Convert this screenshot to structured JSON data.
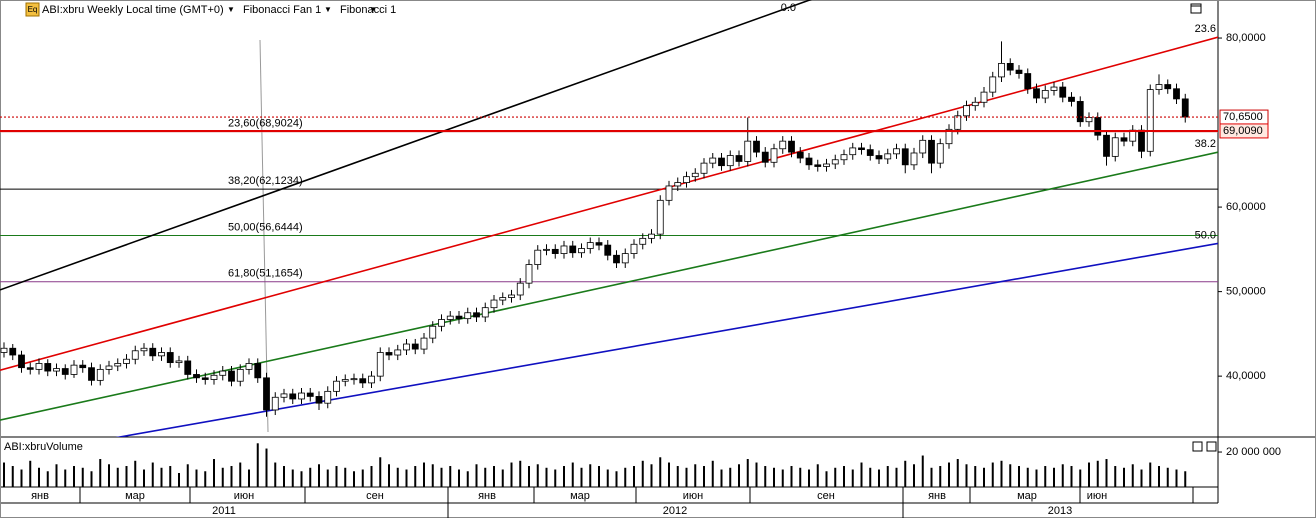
{
  "chart_data": {
    "type": "candlestick",
    "icon": "Eq",
    "title": "ABI:xbru Weekly Local time (GMT+0)",
    "menus": [
      "Fibonacci Fan 1",
      "Fibonacci 1"
    ],
    "ylim": [
      32.8,
      84.5
    ],
    "yticks": [
      {
        "value": 80,
        "label": "80,0000"
      },
      {
        "value": 60,
        "label": "60,0000"
      },
      {
        "value": 50,
        "label": "50,0000"
      },
      {
        "value": 40,
        "label": "40,0000"
      }
    ],
    "up_color": "#ffffff",
    "down_color": "#000000",
    "months": [
      "янв",
      "мар",
      "июн",
      "сен",
      "янв",
      "мар",
      "июн",
      "сен",
      "янв",
      "мар",
      "июн"
    ],
    "years": [
      "2011",
      "2012",
      "2013"
    ],
    "open": [
      42.8,
      43.3,
      42.5,
      41.0,
      40.8,
      41.5,
      40.6,
      40.9,
      40.2,
      41.3,
      41.0,
      39.5,
      40.8,
      41.2,
      41.5,
      42.0,
      43.0,
      43.3,
      42.4,
      42.8,
      41.6,
      41.8,
      40.2,
      39.8,
      39.6,
      40.1,
      40.6,
      39.4,
      40.8,
      41.5,
      39.8,
      36.0,
      37.5,
      37.9,
      37.3,
      38.0,
      37.6,
      36.8,
      38.2,
      39.4,
      39.6,
      39.7,
      39.2,
      40.0,
      42.8,
      42.5,
      43.1,
      43.8,
      43.2,
      44.5,
      45.9,
      46.7,
      47.1,
      46.8,
      47.5,
      47.0,
      48.1,
      49.0,
      49.3,
      49.6,
      51.0,
      53.2,
      54.9,
      55.0,
      54.5,
      55.4,
      54.6,
      55.1,
      55.8,
      55.5,
      54.3,
      53.4,
      54.5,
      55.6,
      56.3,
      56.8,
      60.8,
      62.5,
      62.9,
      63.6,
      64.0,
      65.2,
      65.8,
      64.9,
      66.1,
      65.4,
      67.8,
      66.5,
      65.3,
      66.9,
      67.8,
      66.5,
      65.8,
      65.0,
      64.8,
      65.1,
      65.6,
      66.2,
      67.0,
      66.8,
      66.1,
      65.7,
      66.3,
      66.9,
      65.0,
      66.4,
      67.9,
      65.2,
      67.5,
      69.2,
      70.8,
      72.0,
      72.4,
      73.6,
      75.4,
      77.0,
      76.2,
      75.8,
      74.0,
      72.9,
      73.8,
      74.2,
      73.0,
      72.5,
      70.1,
      70.6,
      68.5,
      66.0,
      68.2,
      67.8,
      69.1,
      66.6,
      73.9,
      74.5,
      74.0,
      72.8
    ],
    "high": [
      44.0,
      43.8,
      43.0,
      41.6,
      42.1,
      42.0,
      41.5,
      41.4,
      41.9,
      41.9,
      41.6,
      41.4,
      41.8,
      42.1,
      42.6,
      43.6,
      43.9,
      43.9,
      43.4,
      43.4,
      42.4,
      42.4,
      40.8,
      40.4,
      40.7,
      41.2,
      41.2,
      41.4,
      42.1,
      42.1,
      40.4,
      38.1,
      38.5,
      38.5,
      38.6,
      38.6,
      38.2,
      38.8,
      40.0,
      40.2,
      40.3,
      40.3,
      40.6,
      43.4,
      43.4,
      43.7,
      44.4,
      44.4,
      45.1,
      46.5,
      47.3,
      47.7,
      47.7,
      48.1,
      48.1,
      48.7,
      49.6,
      49.9,
      50.2,
      51.6,
      53.8,
      55.5,
      55.6,
      55.6,
      56.0,
      56.0,
      55.7,
      56.4,
      56.4,
      56.1,
      54.9,
      55.1,
      56.2,
      56.9,
      57.4,
      61.4,
      63.1,
      63.5,
      64.2,
      64.6,
      65.8,
      66.4,
      66.4,
      66.7,
      66.7,
      70.6,
      68.4,
      67.1,
      67.5,
      68.4,
      68.4,
      67.1,
      66.4,
      65.6,
      65.7,
      66.2,
      66.8,
      67.6,
      67.6,
      67.4,
      66.7,
      66.9,
      67.5,
      67.5,
      67.0,
      68.5,
      68.5,
      68.1,
      69.8,
      71.4,
      72.6,
      73.0,
      74.2,
      76.0,
      79.6,
      77.6,
      76.8,
      76.4,
      74.6,
      74.4,
      74.8,
      74.8,
      73.6,
      73.1,
      71.2,
      71.2,
      69.1,
      68.8,
      68.8,
      69.7,
      69.7,
      74.5,
      75.7,
      75.1,
      74.6,
      73.4
    ],
    "low": [
      42.2,
      41.9,
      40.4,
      40.2,
      40.2,
      40.0,
      40.0,
      39.6,
      39.8,
      40.4,
      38.9,
      38.9,
      40.2,
      40.6,
      40.9,
      41.4,
      42.4,
      41.8,
      41.8,
      41.0,
      41.0,
      39.6,
      39.2,
      39.0,
      39.0,
      39.5,
      38.8,
      38.8,
      40.2,
      39.2,
      35.2,
      35.4,
      36.9,
      36.7,
      36.7,
      37.0,
      36.0,
      36.2,
      37.6,
      38.8,
      39.0,
      38.6,
      38.6,
      39.4,
      41.9,
      41.9,
      42.5,
      42.6,
      42.6,
      43.9,
      45.3,
      46.1,
      46.2,
      46.2,
      46.4,
      46.4,
      47.5,
      48.4,
      48.7,
      49.0,
      50.4,
      52.6,
      54.3,
      53.9,
      53.9,
      54.0,
      54.0,
      54.5,
      54.9,
      53.7,
      52.8,
      52.8,
      53.9,
      55.0,
      55.7,
      56.2,
      60.2,
      61.9,
      62.3,
      63.0,
      63.4,
      64.6,
      64.3,
      64.3,
      64.8,
      64.8,
      65.9,
      64.7,
      64.7,
      66.3,
      65.9,
      65.2,
      64.4,
      64.2,
      64.2,
      64.5,
      65.0,
      65.6,
      66.2,
      65.5,
      65.1,
      65.1,
      65.7,
      64.0,
      64.4,
      65.8,
      64.0,
      64.6,
      66.9,
      68.6,
      70.2,
      71.4,
      71.8,
      73.0,
      74.8,
      75.6,
      75.2,
      73.4,
      72.3,
      72.3,
      73.2,
      72.4,
      71.9,
      69.5,
      69.5,
      67.9,
      64.9,
      65.4,
      67.2,
      67.2,
      65.8,
      66.0,
      73.3,
      73.4,
      72.2,
      70.0
    ],
    "close": [
      43.3,
      42.5,
      41.0,
      40.8,
      41.5,
      40.6,
      40.9,
      40.2,
      41.3,
      41.0,
      39.5,
      40.8,
      41.2,
      41.5,
      42.0,
      43.0,
      43.3,
      42.4,
      42.8,
      41.6,
      41.8,
      40.2,
      39.8,
      39.6,
      40.1,
      40.6,
      39.4,
      40.8,
      41.5,
      39.8,
      36.0,
      37.5,
      37.9,
      37.3,
      38.0,
      37.6,
      36.8,
      38.2,
      39.4,
      39.6,
      39.7,
      39.2,
      40.0,
      42.8,
      42.5,
      43.1,
      43.8,
      43.2,
      44.5,
      45.9,
      46.7,
      47.1,
      46.8,
      47.5,
      47.0,
      48.1,
      49.0,
      49.3,
      49.6,
      51.0,
      53.2,
      54.9,
      55.0,
      54.5,
      55.4,
      54.6,
      55.1,
      55.8,
      55.5,
      54.3,
      53.4,
      54.5,
      55.6,
      56.3,
      56.8,
      60.8,
      62.5,
      62.9,
      63.6,
      64.0,
      65.2,
      65.8,
      64.9,
      66.1,
      65.4,
      67.8,
      66.5,
      65.3,
      66.9,
      67.8,
      66.5,
      65.8,
      65.0,
      64.8,
      65.1,
      65.6,
      66.2,
      67.0,
      66.8,
      66.1,
      65.7,
      66.3,
      66.9,
      65.0,
      66.4,
      67.9,
      65.2,
      67.5,
      69.2,
      70.8,
      72.0,
      72.4,
      73.6,
      75.4,
      77.0,
      76.2,
      75.8,
      74.0,
      72.9,
      73.8,
      74.2,
      73.0,
      72.5,
      70.1,
      70.6,
      68.5,
      66.0,
      68.2,
      67.8,
      69.1,
      66.6,
      73.9,
      74.5,
      74.0,
      72.8,
      70.65
    ],
    "fan_lines": [
      {
        "label": "0.0",
        "start": 50.2,
        "end": 101.8,
        "color": "#000000"
      },
      {
        "label": "23.6",
        "start": 40.7,
        "end": 80.1,
        "color": "#e00000"
      },
      {
        "label": "38.2",
        "start": 34.8,
        "end": 66.5,
        "color": "#1a7a1a"
      },
      {
        "label": "50.0",
        "start": 30.3,
        "end": 55.7,
        "color": "#1010c0"
      }
    ],
    "fib_levels": [
      {
        "value": 68.9024,
        "label": "23,60(68,9024)",
        "color": "#d89090"
      },
      {
        "value": 62.1234,
        "label": "38,20(62,1234)",
        "color": "#000000"
      },
      {
        "value": 56.6444,
        "label": "50,00(56,6444)",
        "color": "#1a7a1a"
      },
      {
        "value": 51.1654,
        "label": "61,80(51,1654)",
        "color": "#8a3a8a"
      }
    ],
    "price_lines": [
      {
        "value": 70.65,
        "label": "70,6500",
        "style": "dotted",
        "color": "#cc0000",
        "box": "#ffffff",
        "text_color": "#000000"
      },
      {
        "value": 69.009,
        "label": "69,0090",
        "style": "solid",
        "color": "#e00000",
        "box": "#ffe8e0",
        "text_color": "#cc0000"
      }
    ],
    "volume": {
      "title": "ABI:xbruVolume",
      "ylim": [
        0,
        28600000
      ],
      "yticks": [
        {
          "value": 20000000,
          "label": "20 000 000"
        }
      ],
      "values": [
        14000000,
        12000000,
        10000000,
        15000000,
        11000000,
        9000000,
        13000000,
        10000000,
        12000000,
        11000000,
        9000000,
        16000000,
        13000000,
        11000000,
        12000000,
        15000000,
        10000000,
        14000000,
        11000000,
        12000000,
        8000000,
        13000000,
        10000000,
        9000000,
        16000000,
        11000000,
        12000000,
        14000000,
        10000000,
        25000000,
        22000000,
        14000000,
        12000000,
        10000000,
        9000000,
        11000000,
        13000000,
        10000000,
        12000000,
        11000000,
        9000000,
        10000000,
        12000000,
        17000000,
        13000000,
        11000000,
        10000000,
        12000000,
        14000000,
        13000000,
        11000000,
        12000000,
        10000000,
        9000000,
        13000000,
        11000000,
        12000000,
        10000000,
        14000000,
        15000000,
        12000000,
        13000000,
        11000000,
        10000000,
        12000000,
        14000000,
        11000000,
        13000000,
        12000000,
        10000000,
        9000000,
        11000000,
        12000000,
        15000000,
        13000000,
        17000000,
        14000000,
        12000000,
        11000000,
        13000000,
        12000000,
        15000000,
        10000000,
        11000000,
        13000000,
        16000000,
        14000000,
        12000000,
        11000000,
        10000000,
        12000000,
        11000000,
        10000000,
        13000000,
        9000000,
        11000000,
        12000000,
        10000000,
        14000000,
        11000000,
        10000000,
        12000000,
        11000000,
        15000000,
        13000000,
        18000000,
        11000000,
        12000000,
        14000000,
        16000000,
        13000000,
        12000000,
        11000000,
        14000000,
        15000000,
        13000000,
        12000000,
        11000000,
        10000000,
        12000000,
        11000000,
        13000000,
        12000000,
        10000000,
        14000000,
        15000000,
        16000000,
        12000000,
        11000000,
        13000000,
        10000000,
        14000000,
        12000000,
        11000000,
        10000000,
        9000000
      ],
      "color": "#000000"
    }
  }
}
